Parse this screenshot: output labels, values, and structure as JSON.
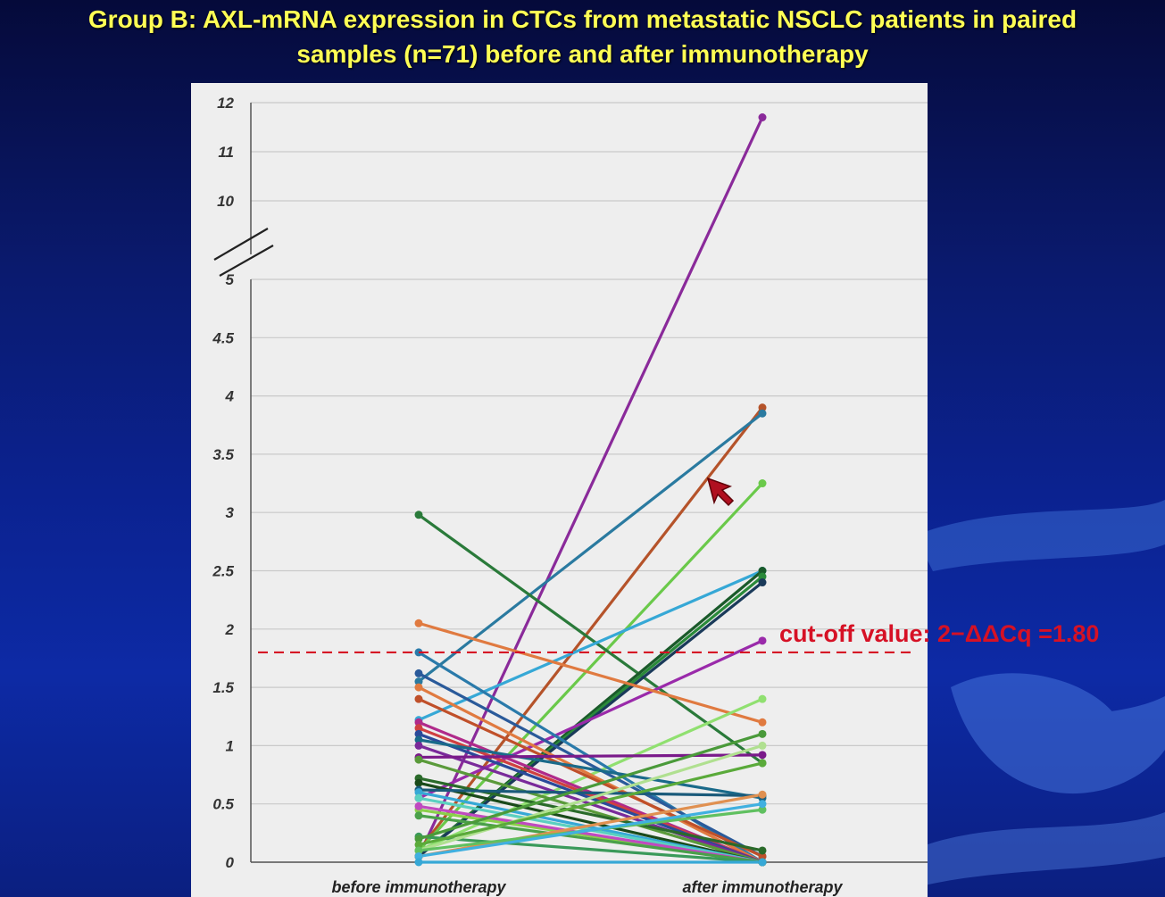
{
  "slide": {
    "title_line1": "Group B: AXL-mRNA expression in CTCs from metastatic NSCLC patients in paired",
    "title_line2": "samples (n=71) before and after immunotherapy"
  },
  "chart_data": {
    "type": "line",
    "categories": [
      "before immunotherapy",
      "after immunotherapy"
    ],
    "y_ticks_lower": [
      "0",
      "0.5",
      "1",
      "1.5",
      "2",
      "2.5",
      "3",
      "3.5",
      "4",
      "4.5",
      "5"
    ],
    "y_ticks_upper": [
      "10",
      "11",
      "12"
    ],
    "ylim_lower": [
      0,
      5
    ],
    "ylim_upper": [
      10,
      12
    ],
    "axis_break": true,
    "grid": true,
    "cutoff": {
      "value": 1.8,
      "label": "cut-off value: 2−ΔΔCq =1.80",
      "color": "#d61125"
    },
    "series": [
      {
        "values": [
          0.05,
          11.7
        ],
        "color": "#8a2a9a"
      },
      {
        "values": [
          0.1,
          3.9
        ],
        "color": "#b5532a"
      },
      {
        "values": [
          1.55,
          3.85
        ],
        "color": "#2a7aa0"
      },
      {
        "values": [
          0.1,
          3.25
        ],
        "color": "#6ac94a"
      },
      {
        "values": [
          2.98,
          0.85
        ],
        "color": "#2a7a3a"
      },
      {
        "values": [
          1.22,
          2.5
        ],
        "color": "#36a8d6"
      },
      {
        "values": [
          0.05,
          2.5
        ],
        "color": "#1a5a2a"
      },
      {
        "values": [
          0.05,
          2.45
        ],
        "color": "#2a8a3a"
      },
      {
        "values": [
          0.05,
          2.4
        ],
        "color": "#1a3a5a"
      },
      {
        "values": [
          0.55,
          1.9
        ],
        "color": "#9a2aaa"
      },
      {
        "values": [
          2.05,
          1.2
        ],
        "color": "#e07a40"
      },
      {
        "values": [
          0.1,
          1.4
        ],
        "color": "#90e070"
      },
      {
        "values": [
          1.8,
          0.0
        ],
        "color": "#2a7aaa"
      },
      {
        "values": [
          1.62,
          0.05
        ],
        "color": "#2a5a9a"
      },
      {
        "values": [
          1.5,
          0.0
        ],
        "color": "#e07a40"
      },
      {
        "values": [
          1.4,
          0.05
        ],
        "color": "#c0502a"
      },
      {
        "values": [
          1.2,
          0.0
        ],
        "color": "#b02a8a"
      },
      {
        "values": [
          1.15,
          0.0
        ],
        "color": "#d04040"
      },
      {
        "values": [
          1.1,
          0.0
        ],
        "color": "#2a4a9a"
      },
      {
        "values": [
          1.05,
          0.55
        ],
        "color": "#1a6a8a"
      },
      {
        "values": [
          1.0,
          0.0
        ],
        "color": "#7a2a9a"
      },
      {
        "values": [
          0.9,
          0.92
        ],
        "color": "#7a1a8a"
      },
      {
        "values": [
          0.88,
          0.0
        ],
        "color": "#5a9a3a"
      },
      {
        "values": [
          0.72,
          0.1
        ],
        "color": "#2a6a2a"
      },
      {
        "values": [
          0.68,
          0.0
        ],
        "color": "#1a4a1a"
      },
      {
        "values": [
          0.62,
          0.57
        ],
        "color": "#1a5a7a"
      },
      {
        "values": [
          0.6,
          0.0
        ],
        "color": "#36a8d6"
      },
      {
        "values": [
          0.55,
          0.0
        ],
        "color": "#5ad0c0"
      },
      {
        "values": [
          0.45,
          0.0
        ],
        "color": "#8ad04a"
      },
      {
        "values": [
          0.48,
          0.0
        ],
        "color": "#c04ac0"
      },
      {
        "values": [
          0.4,
          0.0
        ],
        "color": "#4aa04a"
      },
      {
        "values": [
          0.22,
          0.0
        ],
        "color": "#3a9a5a"
      },
      {
        "values": [
          0.2,
          1.1
        ],
        "color": "#4a9a3a"
      },
      {
        "values": [
          0.1,
          1.0
        ],
        "color": "#b0e090"
      },
      {
        "values": [
          0.15,
          0.85
        ],
        "color": "#5aaa3a"
      },
      {
        "values": [
          0.05,
          0.58
        ],
        "color": "#e09050"
      },
      {
        "values": [
          0.1,
          0.45
        ],
        "color": "#60c060"
      },
      {
        "values": [
          0.05,
          0.5
        ],
        "color": "#40b0e0"
      },
      {
        "values": [
          0.0,
          0.0
        ],
        "color": "#36a8d6"
      }
    ]
  }
}
